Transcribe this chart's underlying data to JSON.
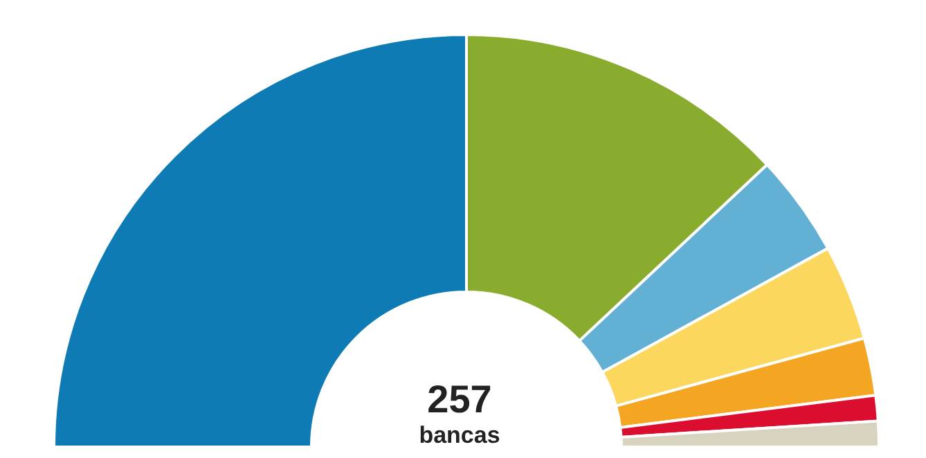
{
  "chart_data": {
    "type": "donut",
    "categories": [
      null,
      null,
      null,
      null,
      null,
      null,
      null
    ],
    "values": [
      50,
      26,
      8,
      7.5,
      4.5,
      2,
      2
    ],
    "colors": [
      "#0e7bb4",
      "#8aac2e",
      "#62b0d3",
      "#fbd75e",
      "#f4a521",
      "#dc0e30",
      "#d8d3bf"
    ],
    "annotations": [
      "257",
      "bancas"
    ],
    "legend": false
  }
}
